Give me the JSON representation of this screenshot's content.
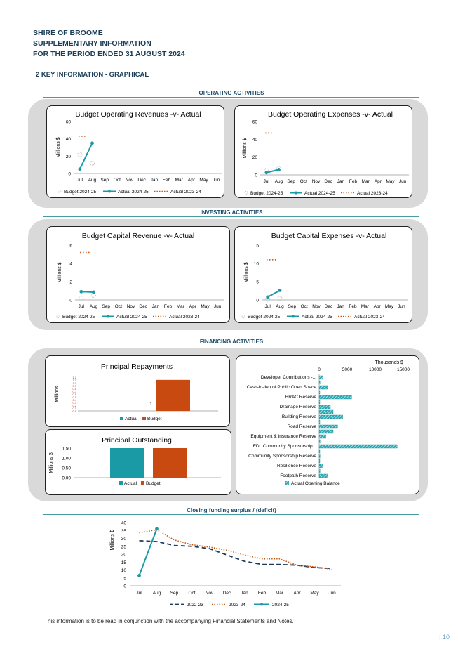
{
  "header": {
    "line1": "SHIRE OF BROOME",
    "line2": "SUPPLEMENTARY INFORMATION",
    "line3": "FOR THE PERIOD ENDED 31 AUGUST 2024",
    "section": "2  KEY INFORMATION - GRAPHICAL"
  },
  "sections": {
    "operating": "OPERATING ACTIVITIES",
    "investing": "INVESTING ACTIVITIES",
    "financing": "FINANCING ACTIVITIES",
    "closing": "Closing funding surplus / (deficit)"
  },
  "colors": {
    "actual": "#1a9aa5",
    "budget": "#b9b9b9",
    "prior": "#c55a11",
    "bar_budget": "#c84a10",
    "bar_actual": "#1a9aa5",
    "dark": "#1f3a5a"
  },
  "months": [
    "Jul",
    "Aug",
    "Sep",
    "Oct",
    "Nov",
    "Dec",
    "Jan",
    "Feb",
    "Mar",
    "Apr",
    "May",
    "Jun"
  ],
  "legend": {
    "budget": "Budget 2024-25",
    "actual": "Actual 2024-25",
    "prior": "Actual 2023-24"
  },
  "chart_data": [
    {
      "type": "line",
      "title": "Budget Operating Revenues -v- Actual",
      "ylabel": "Millions $",
      "ylim": [
        0,
        60
      ],
      "yticks": [
        0,
        20,
        40,
        60
      ],
      "series": [
        {
          "name": "Actual 2024-25",
          "values": [
            5,
            35
          ]
        },
        {
          "name": "Actual 2023-24",
          "values": [
            43,
            43
          ],
          "x_extent": [
            -0.1,
            0.5
          ]
        },
        {
          "name": "Budget 2024-25",
          "values": [
            22,
            12
          ]
        }
      ]
    },
    {
      "type": "line",
      "title": "Budget Operating Expenses -v- Actual",
      "ylabel": "Millions $",
      "ylim": [
        0,
        60
      ],
      "yticks": [
        0,
        20,
        40,
        60
      ],
      "series": [
        {
          "name": "Actual 2024-25",
          "values": [
            2.5,
            6
          ]
        },
        {
          "name": "Actual 2023-24",
          "values": [
            47,
            47
          ],
          "x_extent": [
            -0.1,
            0.6
          ]
        },
        {
          "name": "Budget 2024-25",
          "values": [
            5,
            7
          ]
        }
      ]
    },
    {
      "type": "line",
      "title": "Budget Capital Revenue -v- Actual",
      "ylabel": "Millions $",
      "ylim": [
        0,
        6
      ],
      "yticks": [
        0,
        2,
        4,
        6
      ],
      "series": [
        {
          "name": "Actual 2024-25",
          "values": [
            0.9,
            0.85
          ]
        },
        {
          "name": "Actual 2023-24",
          "values": [
            5.2,
            5.2
          ],
          "x_extent": [
            -0.1,
            0.8
          ]
        },
        {
          "name": "Budget 2024-25",
          "values": [
            0.2,
            0.5
          ]
        }
      ]
    },
    {
      "type": "line",
      "title": "Budget Capital Expenses -v- Actual",
      "ylabel": "Millions $",
      "ylim": [
        0,
        15
      ],
      "yticks": [
        0,
        5,
        10,
        15
      ],
      "series": [
        {
          "name": "Actual 2024-25",
          "values": [
            0.8,
            2.6
          ]
        },
        {
          "name": "Actual 2023-24",
          "values": [
            11,
            11
          ],
          "x_extent": [
            -0.1,
            0.8
          ]
        },
        {
          "name": "Budget 2024-25",
          "values": [
            0.2,
            0.4
          ]
        }
      ]
    },
    {
      "type": "bar",
      "title": "Principal Repayments",
      "ylabel": "Millions",
      "categories": [
        "Actual",
        "Budget"
      ],
      "values": [
        0,
        1
      ],
      "data_label": "1",
      "yticks": [
        "0.0",
        "0.1",
        "0.2",
        "0.3",
        "0.4",
        "0.5",
        "0.6",
        "0.7",
        "0.8",
        "0.9",
        "1.0",
        "1.1",
        "1.2"
      ]
    },
    {
      "type": "bar",
      "title": "Principal Outstanding",
      "ylabel": "Millions $",
      "categories": [
        "Actual",
        "Budget"
      ],
      "values": [
        1.5,
        1.5
      ],
      "ylim": [
        0,
        1.5
      ],
      "yticks": [
        "0.00",
        "0.50",
        "1.00",
        "1.50"
      ]
    },
    {
      "type": "bar",
      "title": "",
      "xlabel": "Thousands $",
      "orientation": "horizontal",
      "xlim": [
        0,
        15000
      ],
      "xticks": [
        "0",
        "5000",
        "10000",
        "15000"
      ],
      "categories": [
        "Developer Contributions -...",
        "",
        "Cash-in-lieu of Public Open Space",
        "",
        "BRAC  Reserve",
        "",
        "Drainage Reserve",
        "",
        "Building Reserve",
        "",
        "Road Reserve",
        "",
        "Equipment & Insurance Reserve",
        "",
        "EDL Community Sponsorship...",
        "",
        "Community Sponsorship Reserve",
        "",
        "Resilience Reserve",
        "",
        "Footpath Reserve"
      ],
      "series": [
        {
          "name": "Actual Opening Balance",
          "values": [
            700,
            150,
            1500,
            100,
            5800,
            100,
            2000,
            2500,
            4200,
            100,
            3300,
            2500,
            1200,
            150,
            13900,
            100,
            150,
            50,
            650,
            150,
            1600
          ]
        }
      ]
    },
    {
      "type": "line",
      "title": "Closing funding surplus / (deficit)",
      "ylabel": "Millions $",
      "ylim": [
        0,
        40
      ],
      "yticks": [
        0,
        5,
        10,
        15,
        20,
        25,
        30,
        35,
        40
      ],
      "series": [
        {
          "name": "2022-23",
          "values": [
            28.5,
            28,
            25.5,
            25,
            23.5,
            19.5,
            15.5,
            13.5,
            13.5,
            13,
            11.5,
            11
          ]
        },
        {
          "name": "2023-24",
          "values": [
            33.5,
            35.5,
            29,
            26,
            24.5,
            22.5,
            19.5,
            17,
            17,
            13,
            12,
            10.5
          ]
        },
        {
          "name": "2024-25",
          "values": [
            6.5,
            36
          ]
        }
      ]
    }
  ],
  "footer": {
    "note": "This information is to be read in conjunction with the accompanying Financial Statements and Notes.",
    "page": "| 10"
  }
}
